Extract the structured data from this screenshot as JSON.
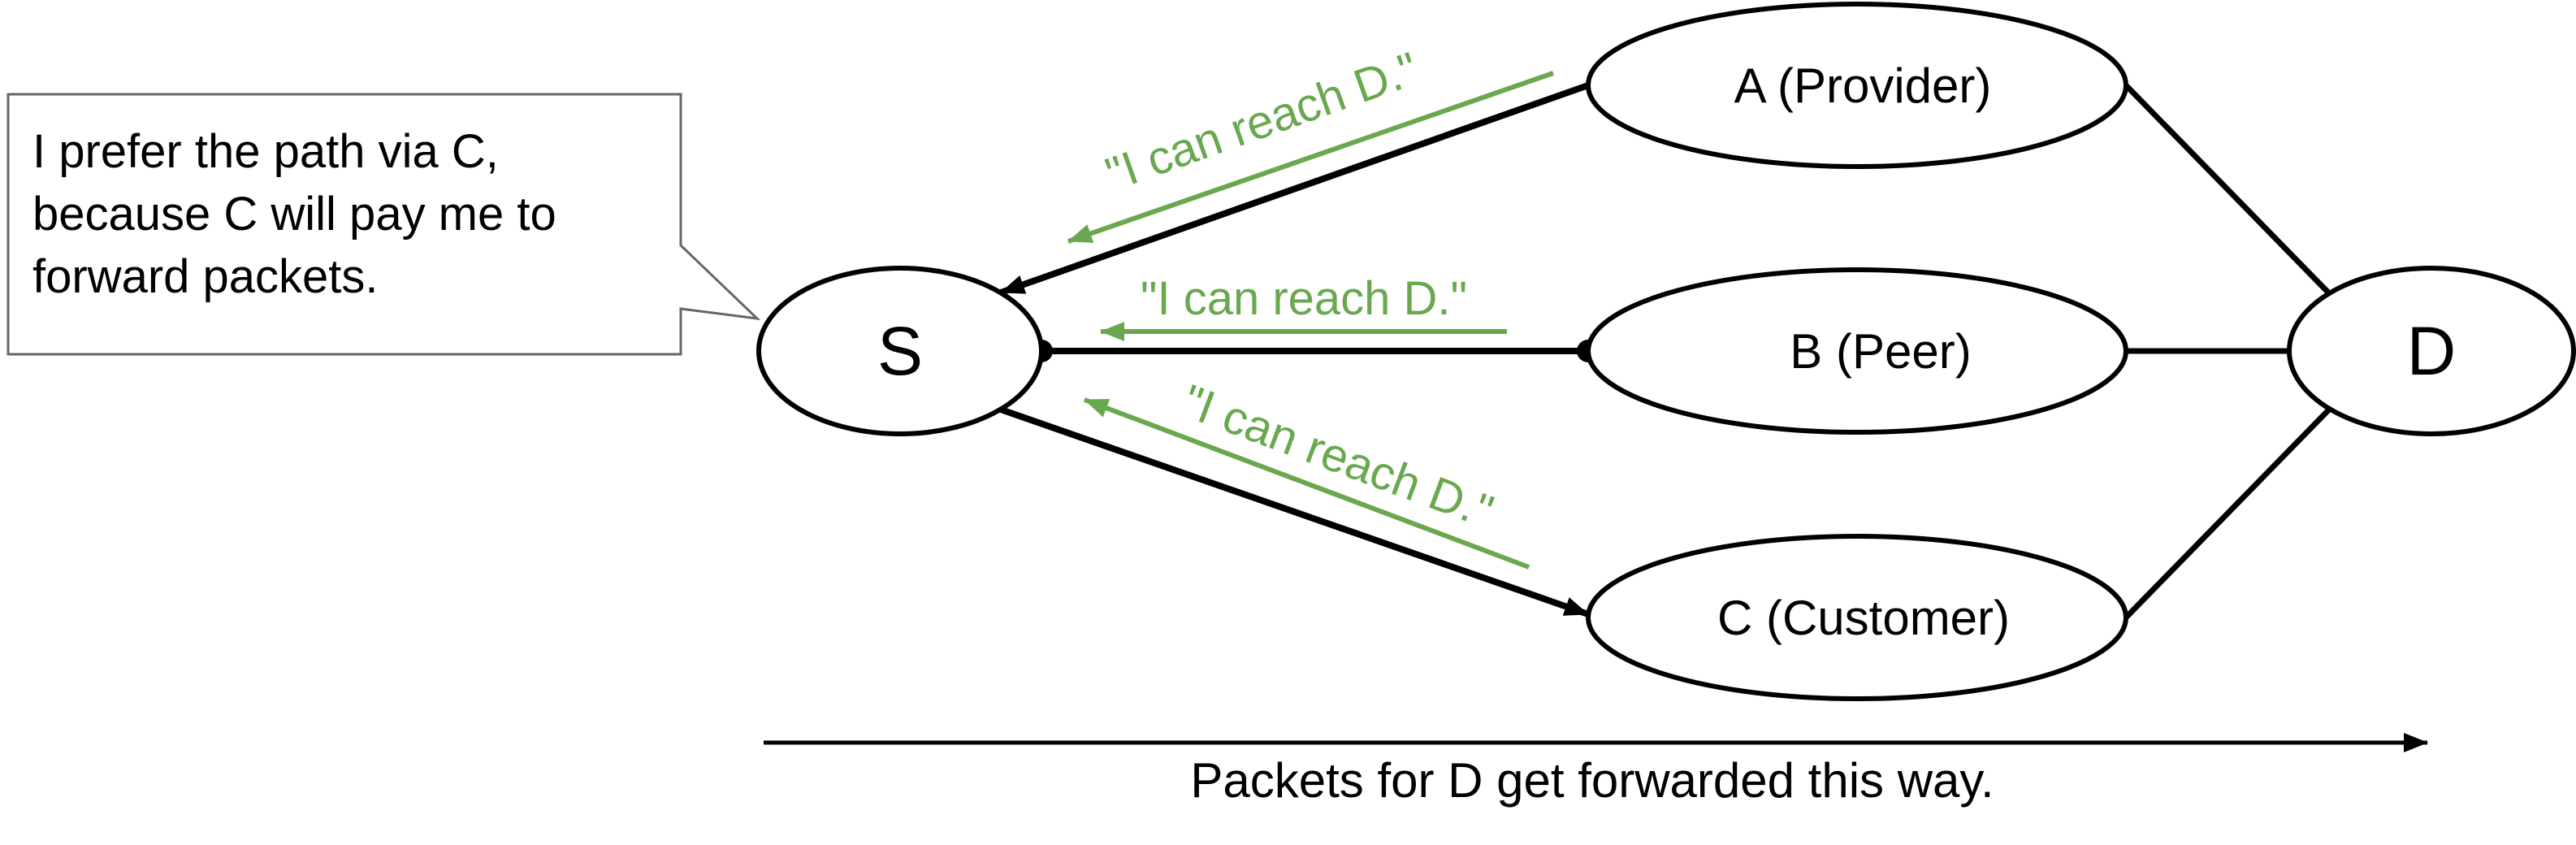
{
  "colors": {
    "line": "#000000",
    "announcement": "#6aa84f",
    "callout_border": "#666666",
    "node_fill": "#ffffff"
  },
  "nodes": {
    "s": {
      "label": "S"
    },
    "a": {
      "label": "A (Provider)"
    },
    "b": {
      "label": "B (Peer)"
    },
    "c": {
      "label": "C (Customer)"
    },
    "d": {
      "label": "D"
    }
  },
  "announcements": {
    "from_a": "\"I can reach D.\"",
    "from_b": "\"I can reach D.\"",
    "from_c": "\"I can reach D.\""
  },
  "callout": {
    "lines": [
      "I prefer the path via C,",
      "because C will pay me to",
      "forward packets."
    ]
  },
  "footer": {
    "caption": "Packets for D get forwarded this way."
  }
}
